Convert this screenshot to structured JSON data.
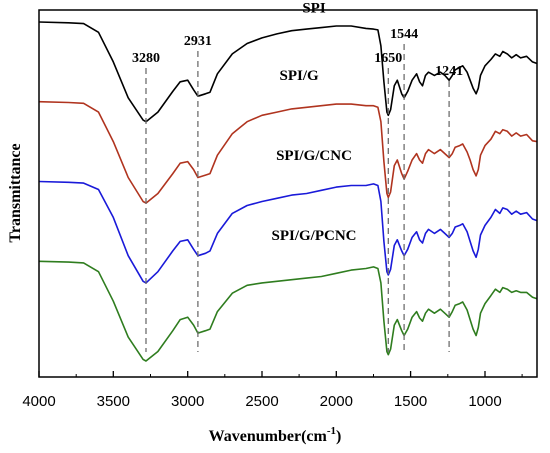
{
  "chart_data": {
    "type": "line",
    "xlabel": "Wavenumber(cm",
    "xlabel_sup": "-1",
    "xlabel_end": ")",
    "ylabel": "Transmittance",
    "xlim": [
      4000,
      650
    ],
    "x_reversed": true,
    "xticks": [
      4000,
      3500,
      3000,
      2500,
      2000,
      1500,
      1000
    ],
    "xtick_labels": [
      "4000",
      "3500",
      "3000",
      "2500",
      "2000",
      "1500",
      "1000"
    ],
    "reference_lines": [
      {
        "x": 3280,
        "label": "3280"
      },
      {
        "x": 2931,
        "label": "2931"
      },
      {
        "x": 1650,
        "label": "1650"
      },
      {
        "x": 1544,
        "label": "1544"
      },
      {
        "x": 1241,
        "label": "1241"
      }
    ],
    "series": [
      {
        "name": "SPI",
        "color": "#000000",
        "offset": 3.0,
        "points": [
          [
            4000,
            1.85
          ],
          [
            3800,
            1.84
          ],
          [
            3700,
            1.83
          ],
          [
            3600,
            1.72
          ],
          [
            3500,
            1.35
          ],
          [
            3400,
            0.9
          ],
          [
            3300,
            0.62
          ],
          [
            3280,
            0.6
          ],
          [
            3200,
            0.72
          ],
          [
            3100,
            0.98
          ],
          [
            3050,
            1.1
          ],
          [
            3000,
            1.12
          ],
          [
            2960,
            1.0
          ],
          [
            2931,
            0.92
          ],
          [
            2880,
            0.95
          ],
          [
            2850,
            0.97
          ],
          [
            2800,
            1.2
          ],
          [
            2700,
            1.45
          ],
          [
            2600,
            1.58
          ],
          [
            2500,
            1.65
          ],
          [
            2400,
            1.7
          ],
          [
            2300,
            1.74
          ],
          [
            2200,
            1.76
          ],
          [
            2100,
            1.78
          ],
          [
            2000,
            1.8
          ],
          [
            1900,
            1.8
          ],
          [
            1800,
            1.77
          ],
          [
            1750,
            1.76
          ],
          [
            1720,
            1.75
          ],
          [
            1700,
            1.55
          ],
          [
            1680,
            1.1
          ],
          [
            1660,
            0.72
          ],
          [
            1650,
            0.68
          ],
          [
            1635,
            0.75
          ],
          [
            1610,
            1.05
          ],
          [
            1590,
            1.12
          ],
          [
            1560,
            0.95
          ],
          [
            1544,
            0.9
          ],
          [
            1520,
            0.98
          ],
          [
            1490,
            1.12
          ],
          [
            1460,
            1.2
          ],
          [
            1440,
            1.1
          ],
          [
            1420,
            1.05
          ],
          [
            1400,
            1.18
          ],
          [
            1380,
            1.22
          ],
          [
            1340,
            1.18
          ],
          [
            1300,
            1.22
          ],
          [
            1270,
            1.18
          ],
          [
            1241,
            1.12
          ],
          [
            1220,
            1.18
          ],
          [
            1200,
            1.25
          ],
          [
            1170,
            1.28
          ],
          [
            1150,
            1.3
          ],
          [
            1120,
            1.22
          ],
          [
            1100,
            1.12
          ],
          [
            1080,
            1.02
          ],
          [
            1060,
            0.95
          ],
          [
            1045,
            1.02
          ],
          [
            1030,
            1.18
          ],
          [
            1000,
            1.3
          ],
          [
            960,
            1.38
          ],
          [
            930,
            1.45
          ],
          [
            900,
            1.42
          ],
          [
            880,
            1.48
          ],
          [
            850,
            1.45
          ],
          [
            820,
            1.4
          ],
          [
            790,
            1.44
          ],
          [
            760,
            1.4
          ],
          [
            720,
            1.42
          ],
          [
            680,
            1.35
          ],
          [
            650,
            1.33
          ]
        ]
      },
      {
        "name": "SPI/G",
        "color": "#b0341f",
        "offset": 2.0,
        "points": [
          [
            4000,
            1.85
          ],
          [
            3800,
            1.84
          ],
          [
            3700,
            1.83
          ],
          [
            3600,
            1.72
          ],
          [
            3500,
            1.35
          ],
          [
            3400,
            0.9
          ],
          [
            3300,
            0.6
          ],
          [
            3280,
            0.58
          ],
          [
            3200,
            0.7
          ],
          [
            3100,
            0.95
          ],
          [
            3050,
            1.08
          ],
          [
            3000,
            1.1
          ],
          [
            2960,
            1.0
          ],
          [
            2931,
            0.9
          ],
          [
            2880,
            0.93
          ],
          [
            2850,
            0.95
          ],
          [
            2800,
            1.18
          ],
          [
            2700,
            1.45
          ],
          [
            2600,
            1.6
          ],
          [
            2500,
            1.68
          ],
          [
            2400,
            1.72
          ],
          [
            2300,
            1.76
          ],
          [
            2200,
            1.78
          ],
          [
            2100,
            1.8
          ],
          [
            2000,
            1.82
          ],
          [
            1900,
            1.82
          ],
          [
            1800,
            1.8
          ],
          [
            1750,
            1.8
          ],
          [
            1720,
            1.78
          ],
          [
            1700,
            1.6
          ],
          [
            1680,
            1.1
          ],
          [
            1660,
            0.7
          ],
          [
            1650,
            0.65
          ],
          [
            1635,
            0.72
          ],
          [
            1610,
            1.05
          ],
          [
            1590,
            1.12
          ],
          [
            1560,
            0.95
          ],
          [
            1544,
            0.88
          ],
          [
            1520,
            0.98
          ],
          [
            1490,
            1.12
          ],
          [
            1460,
            1.2
          ],
          [
            1440,
            1.12
          ],
          [
            1420,
            1.08
          ],
          [
            1400,
            1.2
          ],
          [
            1380,
            1.25
          ],
          [
            1340,
            1.2
          ],
          [
            1300,
            1.25
          ],
          [
            1270,
            1.2
          ],
          [
            1241,
            1.15
          ],
          [
            1220,
            1.2
          ],
          [
            1200,
            1.28
          ],
          [
            1170,
            1.3
          ],
          [
            1150,
            1.32
          ],
          [
            1120,
            1.22
          ],
          [
            1100,
            1.12
          ],
          [
            1080,
            1.0
          ],
          [
            1060,
            0.92
          ],
          [
            1045,
            1.0
          ],
          [
            1030,
            1.18
          ],
          [
            1000,
            1.3
          ],
          [
            960,
            1.38
          ],
          [
            930,
            1.48
          ],
          [
            900,
            1.45
          ],
          [
            880,
            1.5
          ],
          [
            850,
            1.48
          ],
          [
            820,
            1.42
          ],
          [
            790,
            1.46
          ],
          [
            760,
            1.42
          ],
          [
            720,
            1.44
          ],
          [
            680,
            1.36
          ],
          [
            650,
            1.35
          ]
        ]
      },
      {
        "name": "SPI/G/CNC",
        "color": "#1a1ad9",
        "offset": 1.0,
        "points": [
          [
            4000,
            1.85
          ],
          [
            3800,
            1.84
          ],
          [
            3700,
            1.83
          ],
          [
            3600,
            1.75
          ],
          [
            3500,
            1.4
          ],
          [
            3400,
            0.92
          ],
          [
            3300,
            0.6
          ],
          [
            3280,
            0.58
          ],
          [
            3200,
            0.72
          ],
          [
            3100,
            0.98
          ],
          [
            3050,
            1.1
          ],
          [
            3000,
            1.12
          ],
          [
            2960,
            1.0
          ],
          [
            2931,
            0.92
          ],
          [
            2880,
            0.95
          ],
          [
            2850,
            0.98
          ],
          [
            2800,
            1.2
          ],
          [
            2700,
            1.45
          ],
          [
            2600,
            1.55
          ],
          [
            2500,
            1.6
          ],
          [
            2400,
            1.64
          ],
          [
            2300,
            1.68
          ],
          [
            2200,
            1.7
          ],
          [
            2100,
            1.74
          ],
          [
            2000,
            1.78
          ],
          [
            1900,
            1.8
          ],
          [
            1800,
            1.8
          ],
          [
            1750,
            1.82
          ],
          [
            1720,
            1.8
          ],
          [
            1700,
            1.6
          ],
          [
            1680,
            1.1
          ],
          [
            1660,
            0.72
          ],
          [
            1650,
            0.68
          ],
          [
            1635,
            0.75
          ],
          [
            1610,
            1.05
          ],
          [
            1590,
            1.12
          ],
          [
            1560,
            0.98
          ],
          [
            1544,
            0.92
          ],
          [
            1520,
            1.0
          ],
          [
            1490,
            1.15
          ],
          [
            1460,
            1.22
          ],
          [
            1440,
            1.12
          ],
          [
            1420,
            1.08
          ],
          [
            1400,
            1.2
          ],
          [
            1380,
            1.25
          ],
          [
            1340,
            1.2
          ],
          [
            1300,
            1.25
          ],
          [
            1270,
            1.2
          ],
          [
            1241,
            1.15
          ],
          [
            1220,
            1.2
          ],
          [
            1200,
            1.28
          ],
          [
            1170,
            1.3
          ],
          [
            1150,
            1.32
          ],
          [
            1120,
            1.22
          ],
          [
            1100,
            1.1
          ],
          [
            1080,
            0.98
          ],
          [
            1060,
            0.9
          ],
          [
            1045,
            1.0
          ],
          [
            1030,
            1.18
          ],
          [
            1000,
            1.3
          ],
          [
            960,
            1.4
          ],
          [
            930,
            1.5
          ],
          [
            900,
            1.45
          ],
          [
            880,
            1.52
          ],
          [
            850,
            1.5
          ],
          [
            820,
            1.44
          ],
          [
            790,
            1.48
          ],
          [
            760,
            1.44
          ],
          [
            720,
            1.46
          ],
          [
            680,
            1.38
          ],
          [
            650,
            1.36
          ]
        ]
      },
      {
        "name": "SPI/G/PCNC",
        "color": "#2f7d1f",
        "offset": 0.0,
        "points": [
          [
            4000,
            1.85
          ],
          [
            3800,
            1.84
          ],
          [
            3700,
            1.83
          ],
          [
            3600,
            1.72
          ],
          [
            3500,
            1.35
          ],
          [
            3400,
            0.9
          ],
          [
            3300,
            0.62
          ],
          [
            3280,
            0.6
          ],
          [
            3200,
            0.72
          ],
          [
            3100,
            0.98
          ],
          [
            3050,
            1.12
          ],
          [
            3000,
            1.15
          ],
          [
            2960,
            1.05
          ],
          [
            2931,
            0.95
          ],
          [
            2880,
            0.98
          ],
          [
            2850,
            1.0
          ],
          [
            2800,
            1.22
          ],
          [
            2700,
            1.45
          ],
          [
            2600,
            1.55
          ],
          [
            2500,
            1.58
          ],
          [
            2400,
            1.6
          ],
          [
            2300,
            1.62
          ],
          [
            2200,
            1.64
          ],
          [
            2100,
            1.66
          ],
          [
            2000,
            1.7
          ],
          [
            1900,
            1.74
          ],
          [
            1800,
            1.76
          ],
          [
            1750,
            1.78
          ],
          [
            1720,
            1.76
          ],
          [
            1700,
            1.58
          ],
          [
            1680,
            1.1
          ],
          [
            1660,
            0.72
          ],
          [
            1650,
            0.68
          ],
          [
            1635,
            0.75
          ],
          [
            1610,
            1.05
          ],
          [
            1590,
            1.12
          ],
          [
            1560,
            0.98
          ],
          [
            1544,
            0.92
          ],
          [
            1520,
            1.0
          ],
          [
            1490,
            1.15
          ],
          [
            1460,
            1.22
          ],
          [
            1440,
            1.14
          ],
          [
            1420,
            1.1
          ],
          [
            1400,
            1.2
          ],
          [
            1380,
            1.25
          ],
          [
            1340,
            1.2
          ],
          [
            1300,
            1.25
          ],
          [
            1270,
            1.2
          ],
          [
            1241,
            1.15
          ],
          [
            1220,
            1.22
          ],
          [
            1200,
            1.3
          ],
          [
            1170,
            1.32
          ],
          [
            1150,
            1.34
          ],
          [
            1120,
            1.24
          ],
          [
            1100,
            1.12
          ],
          [
            1080,
            1.0
          ],
          [
            1060,
            0.92
          ],
          [
            1045,
            1.02
          ],
          [
            1030,
            1.2
          ],
          [
            1000,
            1.32
          ],
          [
            960,
            1.42
          ],
          [
            930,
            1.5
          ],
          [
            900,
            1.46
          ],
          [
            880,
            1.52
          ],
          [
            850,
            1.5
          ],
          [
            820,
            1.46
          ],
          [
            790,
            1.48
          ],
          [
            760,
            1.46
          ],
          [
            720,
            1.46
          ],
          [
            680,
            1.4
          ],
          [
            650,
            1.38
          ]
        ]
      }
    ]
  }
}
